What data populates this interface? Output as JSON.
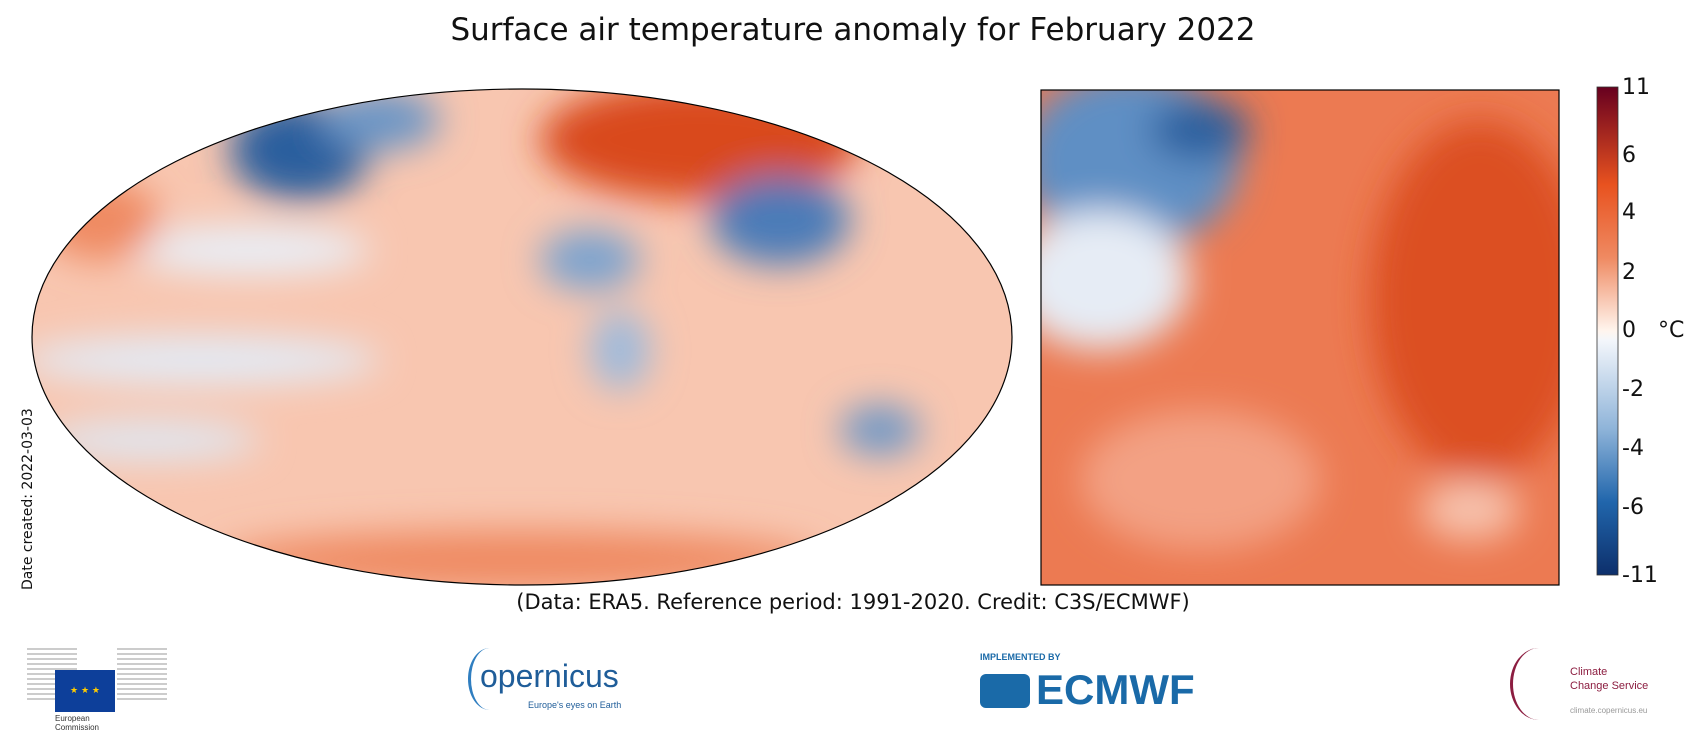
{
  "title": "Surface air temperature anomaly for February 2022",
  "caption": "(Data: ERA5.  Reference period: 1991-2020.  Credit: C3S/ECMWF)",
  "date_created": "Date created: 2022-03-03",
  "colorbar": {
    "unit": "°C",
    "ticks": [
      "11",
      "6",
      "4",
      "2",
      "0",
      "-2",
      "-4",
      "-6",
      "-11"
    ],
    "range": [
      -11,
      11
    ],
    "colors": {
      "max": "#67001f",
      "warm": "#e8521f",
      "mid": "#ffffff",
      "cool": "#8fb4d9",
      "min": "#0d2f6b"
    }
  },
  "panels": [
    {
      "name": "global-map",
      "projection": "Robinson"
    },
    {
      "name": "europe-map",
      "projection": "regional"
    }
  ],
  "logos": {
    "eu": {
      "text": "European Commission"
    },
    "copernicus": {
      "text": "opernicus",
      "tagline": "Europe's eyes on Earth"
    },
    "ecmwf": {
      "pre": "IMPLEMENTED BY",
      "text": "ECMWF"
    },
    "c3s": {
      "line1": "Climate",
      "line2": "Change Service",
      "url": "climate.copernicus.eu"
    }
  }
}
